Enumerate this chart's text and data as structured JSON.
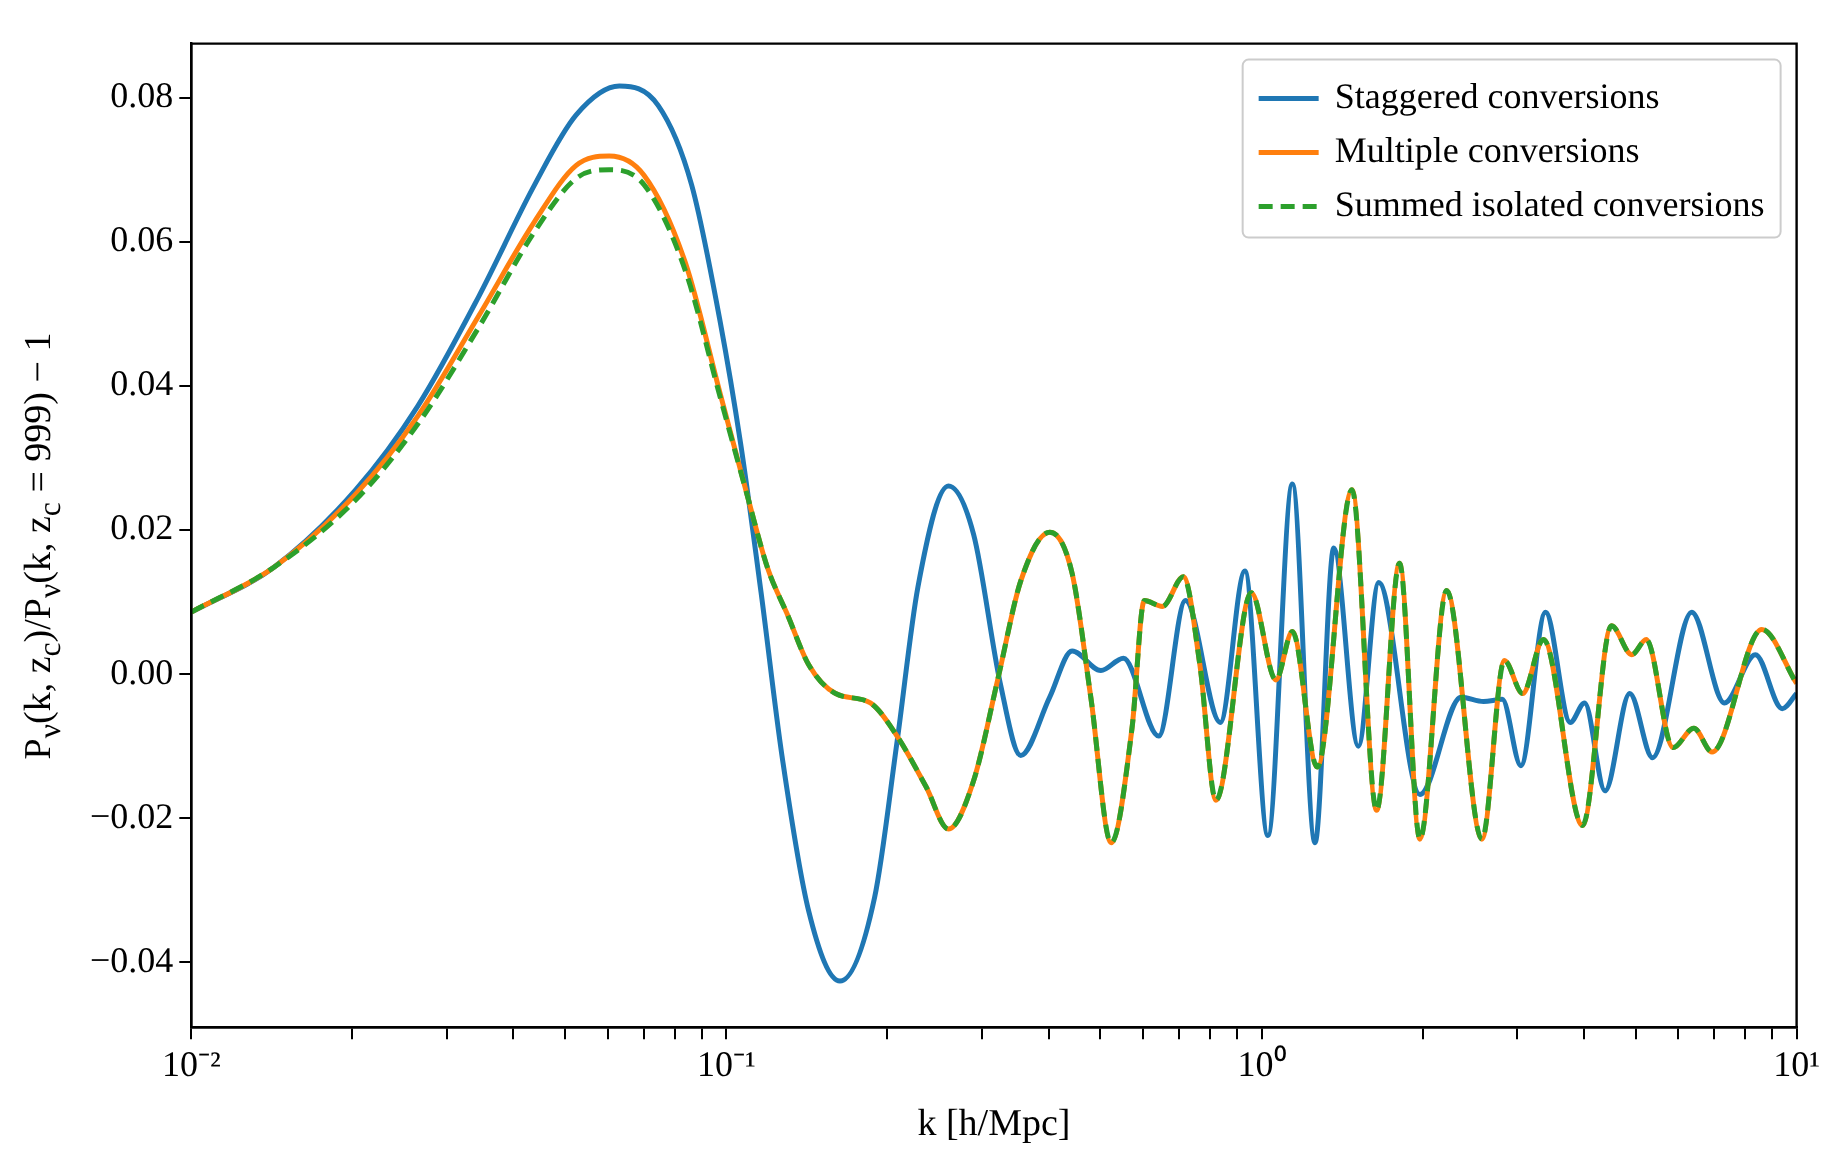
{
  "chart_data": {
    "type": "line",
    "xlabel": "k [h/Mpc]",
    "ylabel": "P$_{ν}$(k, z$_{c}$)/P$_{ν}$(k, z$_{c}$ = 999) − 1",
    "log": "x",
    "grid": false,
    "legend": "top right",
    "xlim": [
      0.01,
      10
    ],
    "ylim": [
      -0.049,
      0.0875
    ],
    "xticks": [
      {
        "value": 0.01,
        "label": "10⁻²"
      },
      {
        "value": 0.02,
        "label": null
      },
      {
        "value": 0.03,
        "label": null
      },
      {
        "value": 0.04,
        "label": null
      },
      {
        "value": 0.05,
        "label": null
      },
      {
        "value": 0.06,
        "label": null
      },
      {
        "value": 0.07,
        "label": null
      },
      {
        "value": 0.08,
        "label": null
      },
      {
        "value": 0.09,
        "label": null
      },
      {
        "value": 0.1,
        "label": "10⁻¹"
      },
      {
        "value": 0.2,
        "label": null
      },
      {
        "value": 0.3,
        "label": null
      },
      {
        "value": 0.4,
        "label": null
      },
      {
        "value": 0.5,
        "label": null
      },
      {
        "value": 0.6,
        "label": null
      },
      {
        "value": 0.7,
        "label": null
      },
      {
        "value": 0.8,
        "label": null
      },
      {
        "value": 0.9,
        "label": null
      },
      {
        "value": 1,
        "label": "10⁰"
      },
      {
        "value": 2,
        "label": null
      },
      {
        "value": 3,
        "label": null
      },
      {
        "value": 4,
        "label": null
      },
      {
        "value": 5,
        "label": null
      },
      {
        "value": 6,
        "label": null
      },
      {
        "value": 7,
        "label": null
      },
      {
        "value": 8,
        "label": null
      },
      {
        "value": 9,
        "label": null
      },
      {
        "value": 10,
        "label": "10¹"
      }
    ],
    "yticks": [
      {
        "value": -0.04,
        "label": "−0.04"
      },
      {
        "value": -0.02,
        "label": "−0.02"
      },
      {
        "value": 0,
        "label": "0.00"
      },
      {
        "value": 0.02,
        "label": "0.02"
      },
      {
        "value": 0.04,
        "label": "0.04"
      },
      {
        "value": 0.06,
        "label": "0.06"
      },
      {
        "value": 0.08,
        "label": "0.08"
      }
    ],
    "series": [
      {
        "name": "Staggered conversions",
        "color": "#1f77b4",
        "line_style": "solid",
        "x": [
          0.01,
          0.01425,
          0.0203,
          0.0265,
          0.0345,
          0.0438,
          0.0524,
          0.0631,
          0.0746,
          0.0861,
          0.0973,
          0.1064,
          0.1161,
          0.127,
          0.1425,
          0.163,
          0.1892,
          0.2084,
          0.228,
          0.26,
          0.2897,
          0.325,
          0.3548,
          0.402,
          0.4426,
          0.501,
          0.552,
          0.6424,
          0.721,
          0.8375,
          0.931,
          1.028,
          1.142,
          1.259,
          1.365,
          1.517,
          1.656,
          1.977,
          2.36,
          2.6,
          2.818,
          3.053,
          3.394,
          3.776,
          4.016,
          4.386,
          4.877,
          5.38,
          6.368,
          7.33,
          8.375,
          9.4,
          10
        ],
        "values": [
          0.0086,
          0.0148,
          0.0256,
          0.0372,
          0.0525,
          0.0679,
          0.0776,
          0.0816,
          0.0789,
          0.0679,
          0.049,
          0.0318,
          0.0113,
          -0.0113,
          -0.0329,
          -0.0426,
          -0.031,
          -0.0094,
          0.0121,
          0.0261,
          0.0194,
          -0.0013,
          -0.0113,
          -0.0032,
          0.0032,
          0.0005,
          0.0022,
          -0.0086,
          0.0102,
          -0.0067,
          0.0143,
          -0.0224,
          0.0264,
          -0.0234,
          0.0175,
          -0.01,
          0.0127,
          -0.0167,
          -0.0032,
          -0.0038,
          -0.0035,
          -0.0127,
          0.0086,
          -0.0067,
          -0.004,
          -0.0162,
          -0.0027,
          -0.0116,
          0.0086,
          -0.004,
          0.0027,
          -0.0048,
          -0.0027
        ]
      },
      {
        "name": "Multiple conversions",
        "color": "#ff7f0e",
        "line_style": "solid",
        "x": [
          0.01,
          0.01425,
          0.0203,
          0.0265,
          0.0345,
          0.0438,
          0.0524,
          0.0604,
          0.0702,
          0.0838,
          0.0973,
          0.1092,
          0.1193,
          0.1303,
          0.1425,
          0.16,
          0.1858,
          0.2084,
          0.236,
          0.26,
          0.2897,
          0.322,
          0.3548,
          0.402,
          0.4426,
          0.4797,
          0.5236,
          0.5728,
          0.6039,
          0.653,
          0.7145,
          0.767,
          0.822,
          0.957,
          1.064,
          1.142,
          1.271,
          1.476,
          1.641,
          1.811,
          1.977,
          2.218,
          2.582,
          2.844,
          3.076,
          3.364,
          3.981,
          4.508,
          4.92,
          5.236,
          5.875,
          6.427,
          6.95,
          8.61,
          10
        ],
        "values": [
          0.0086,
          0.0148,
          0.025,
          0.0358,
          0.0498,
          0.0628,
          0.0706,
          0.0719,
          0.0692,
          0.0571,
          0.039,
          0.025,
          0.0148,
          0.0081,
          0.0013,
          -0.0027,
          -0.004,
          -0.0086,
          -0.0156,
          -0.0215,
          -0.0148,
          -0.0005,
          0.0129,
          0.0197,
          0.014,
          -0.0032,
          -0.0234,
          -0.0075,
          0.0102,
          0.0094,
          0.0135,
          0.0013,
          -0.0175,
          0.0113,
          -0.0008,
          0.0059,
          -0.0129,
          0.0256,
          -0.0189,
          0.0154,
          -0.0229,
          0.0116,
          -0.0229,
          0.0019,
          -0.0027,
          0.0048,
          -0.021,
          0.0067,
          0.0027,
          0.0048,
          -0.0102,
          -0.0075,
          -0.0108,
          0.0062,
          -0.0013
        ]
      },
      {
        "name": "Summed isolated conversions",
        "color": "#2ca02c",
        "line_style": "dashed",
        "x": [
          0.01,
          0.01425,
          0.0203,
          0.0265,
          0.0345,
          0.0438,
          0.0524,
          0.0604,
          0.0702,
          0.0838,
          0.0973,
          0.1092,
          0.1193,
          0.1303,
          0.1425,
          0.16,
          0.1858,
          0.2084,
          0.236,
          0.26,
          0.2897,
          0.322,
          0.3548,
          0.402,
          0.4426,
          0.4797,
          0.5236,
          0.5728,
          0.6039,
          0.653,
          0.7145,
          0.767,
          0.822,
          0.957,
          1.064,
          1.142,
          1.271,
          1.476,
          1.641,
          1.811,
          1.977,
          2.218,
          2.582,
          2.844,
          3.076,
          3.364,
          3.981,
          4.508,
          4.92,
          5.236,
          5.875,
          6.427,
          6.95,
          8.61,
          10
        ],
        "values": [
          0.0086,
          0.0148,
          0.0242,
          0.0347,
          0.0482,
          0.0614,
          0.0688,
          0.07,
          0.0679,
          0.056,
          0.0385,
          0.025,
          0.0148,
          0.0081,
          0.0013,
          -0.0027,
          -0.004,
          -0.0086,
          -0.0156,
          -0.0215,
          -0.0148,
          -0.0005,
          0.0129,
          0.0197,
          0.014,
          -0.0032,
          -0.0234,
          -0.0075,
          0.0102,
          0.0094,
          0.0135,
          0.0013,
          -0.0175,
          0.0113,
          -0.0008,
          0.0059,
          -0.0129,
          0.0256,
          -0.0189,
          0.0154,
          -0.0229,
          0.0116,
          -0.0229,
          0.0019,
          -0.0027,
          0.0048,
          -0.021,
          0.0067,
          0.0027,
          0.0048,
          -0.0102,
          -0.0075,
          -0.0108,
          0.0062,
          -0.0013
        ]
      }
    ]
  }
}
